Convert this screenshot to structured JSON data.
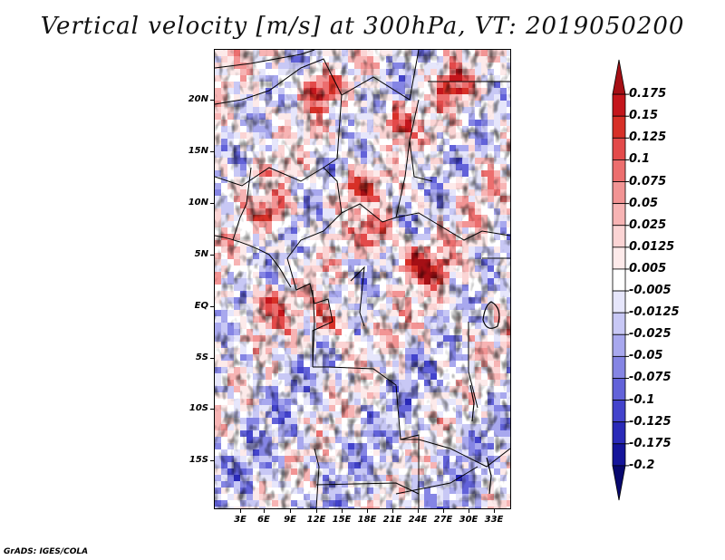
{
  "title": "Vertical velocity [m/s] at 300hPa, VT: 2019050200",
  "footer": "GrADS: IGES/COLA",
  "map": {
    "variable": "vertical velocity",
    "level": "300hPa",
    "valid_time": "2019050200",
    "lat_labels": [
      "20N",
      "15N",
      "10N",
      "5N",
      "EQ",
      "5S",
      "10S",
      "15S"
    ],
    "lon_labels": [
      "3E",
      "6E",
      "9E",
      "12E",
      "15E",
      "18E",
      "21E",
      "24E",
      "27E",
      "30E",
      "33E"
    ]
  },
  "colorbar": {
    "levels": [
      "0.175",
      "0.15",
      "0.125",
      "0.1",
      "0.075",
      "0.05",
      "0.025",
      "0.0125",
      "0.005",
      "-0.005",
      "-0.0125",
      "-0.025",
      "-0.05",
      "-0.075",
      "-0.1",
      "-0.125",
      "-0.175",
      "-0.2"
    ],
    "colors": [
      "#a50f15",
      "#c4161c",
      "#d73027",
      "#e34a4a",
      "#ec6e6e",
      "#f29494",
      "#f7b4b4",
      "#fbd4d4",
      "#fdeaea",
      "#ffffff",
      "#e6e6fb",
      "#c8c8f5",
      "#a8a8ee",
      "#8585e4",
      "#6262d9",
      "#4343cc",
      "#2a2ab8",
      "#15159a",
      "#08086e"
    ]
  }
}
